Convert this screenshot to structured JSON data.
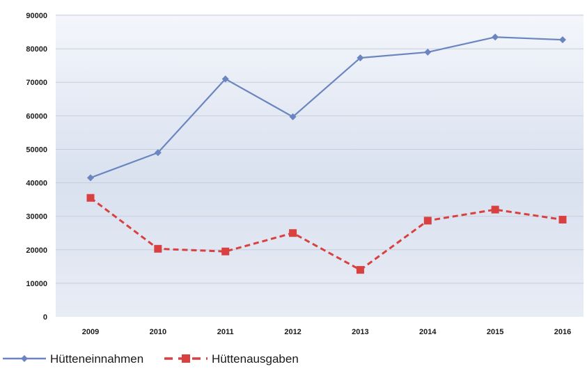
{
  "chart_data": {
    "type": "line",
    "categories": [
      "2009",
      "2010",
      "2011",
      "2012",
      "2013",
      "2014",
      "2015",
      "2016"
    ],
    "series": [
      {
        "name": "Hütteneinnahmen",
        "values": [
          41500,
          49000,
          71000,
          59700,
          77300,
          79000,
          83500,
          82700
        ],
        "color": "#6a85c0",
        "marker": "diamond",
        "line_style": "solid"
      },
      {
        "name": "Hüttenausgaben",
        "values": [
          35500,
          20300,
          19500,
          25000,
          14000,
          28700,
          32000,
          29000
        ],
        "color": "#d94040",
        "marker": "square",
        "line_style": "dashed"
      }
    ],
    "y_ticks": [
      "0",
      "10000",
      "20000",
      "30000",
      "40000",
      "50000",
      "60000",
      "70000",
      "80000",
      "90000"
    ],
    "ylim": [
      0,
      90000
    ],
    "grid": true,
    "legend_position": "bottom-left",
    "title": "",
    "xlabel": "",
    "ylabel": ""
  },
  "colors": {
    "plot_background_top": "#f4f6fb",
    "plot_background_bottom": "#d9e1ef",
    "gridline": "#c6cedb"
  }
}
